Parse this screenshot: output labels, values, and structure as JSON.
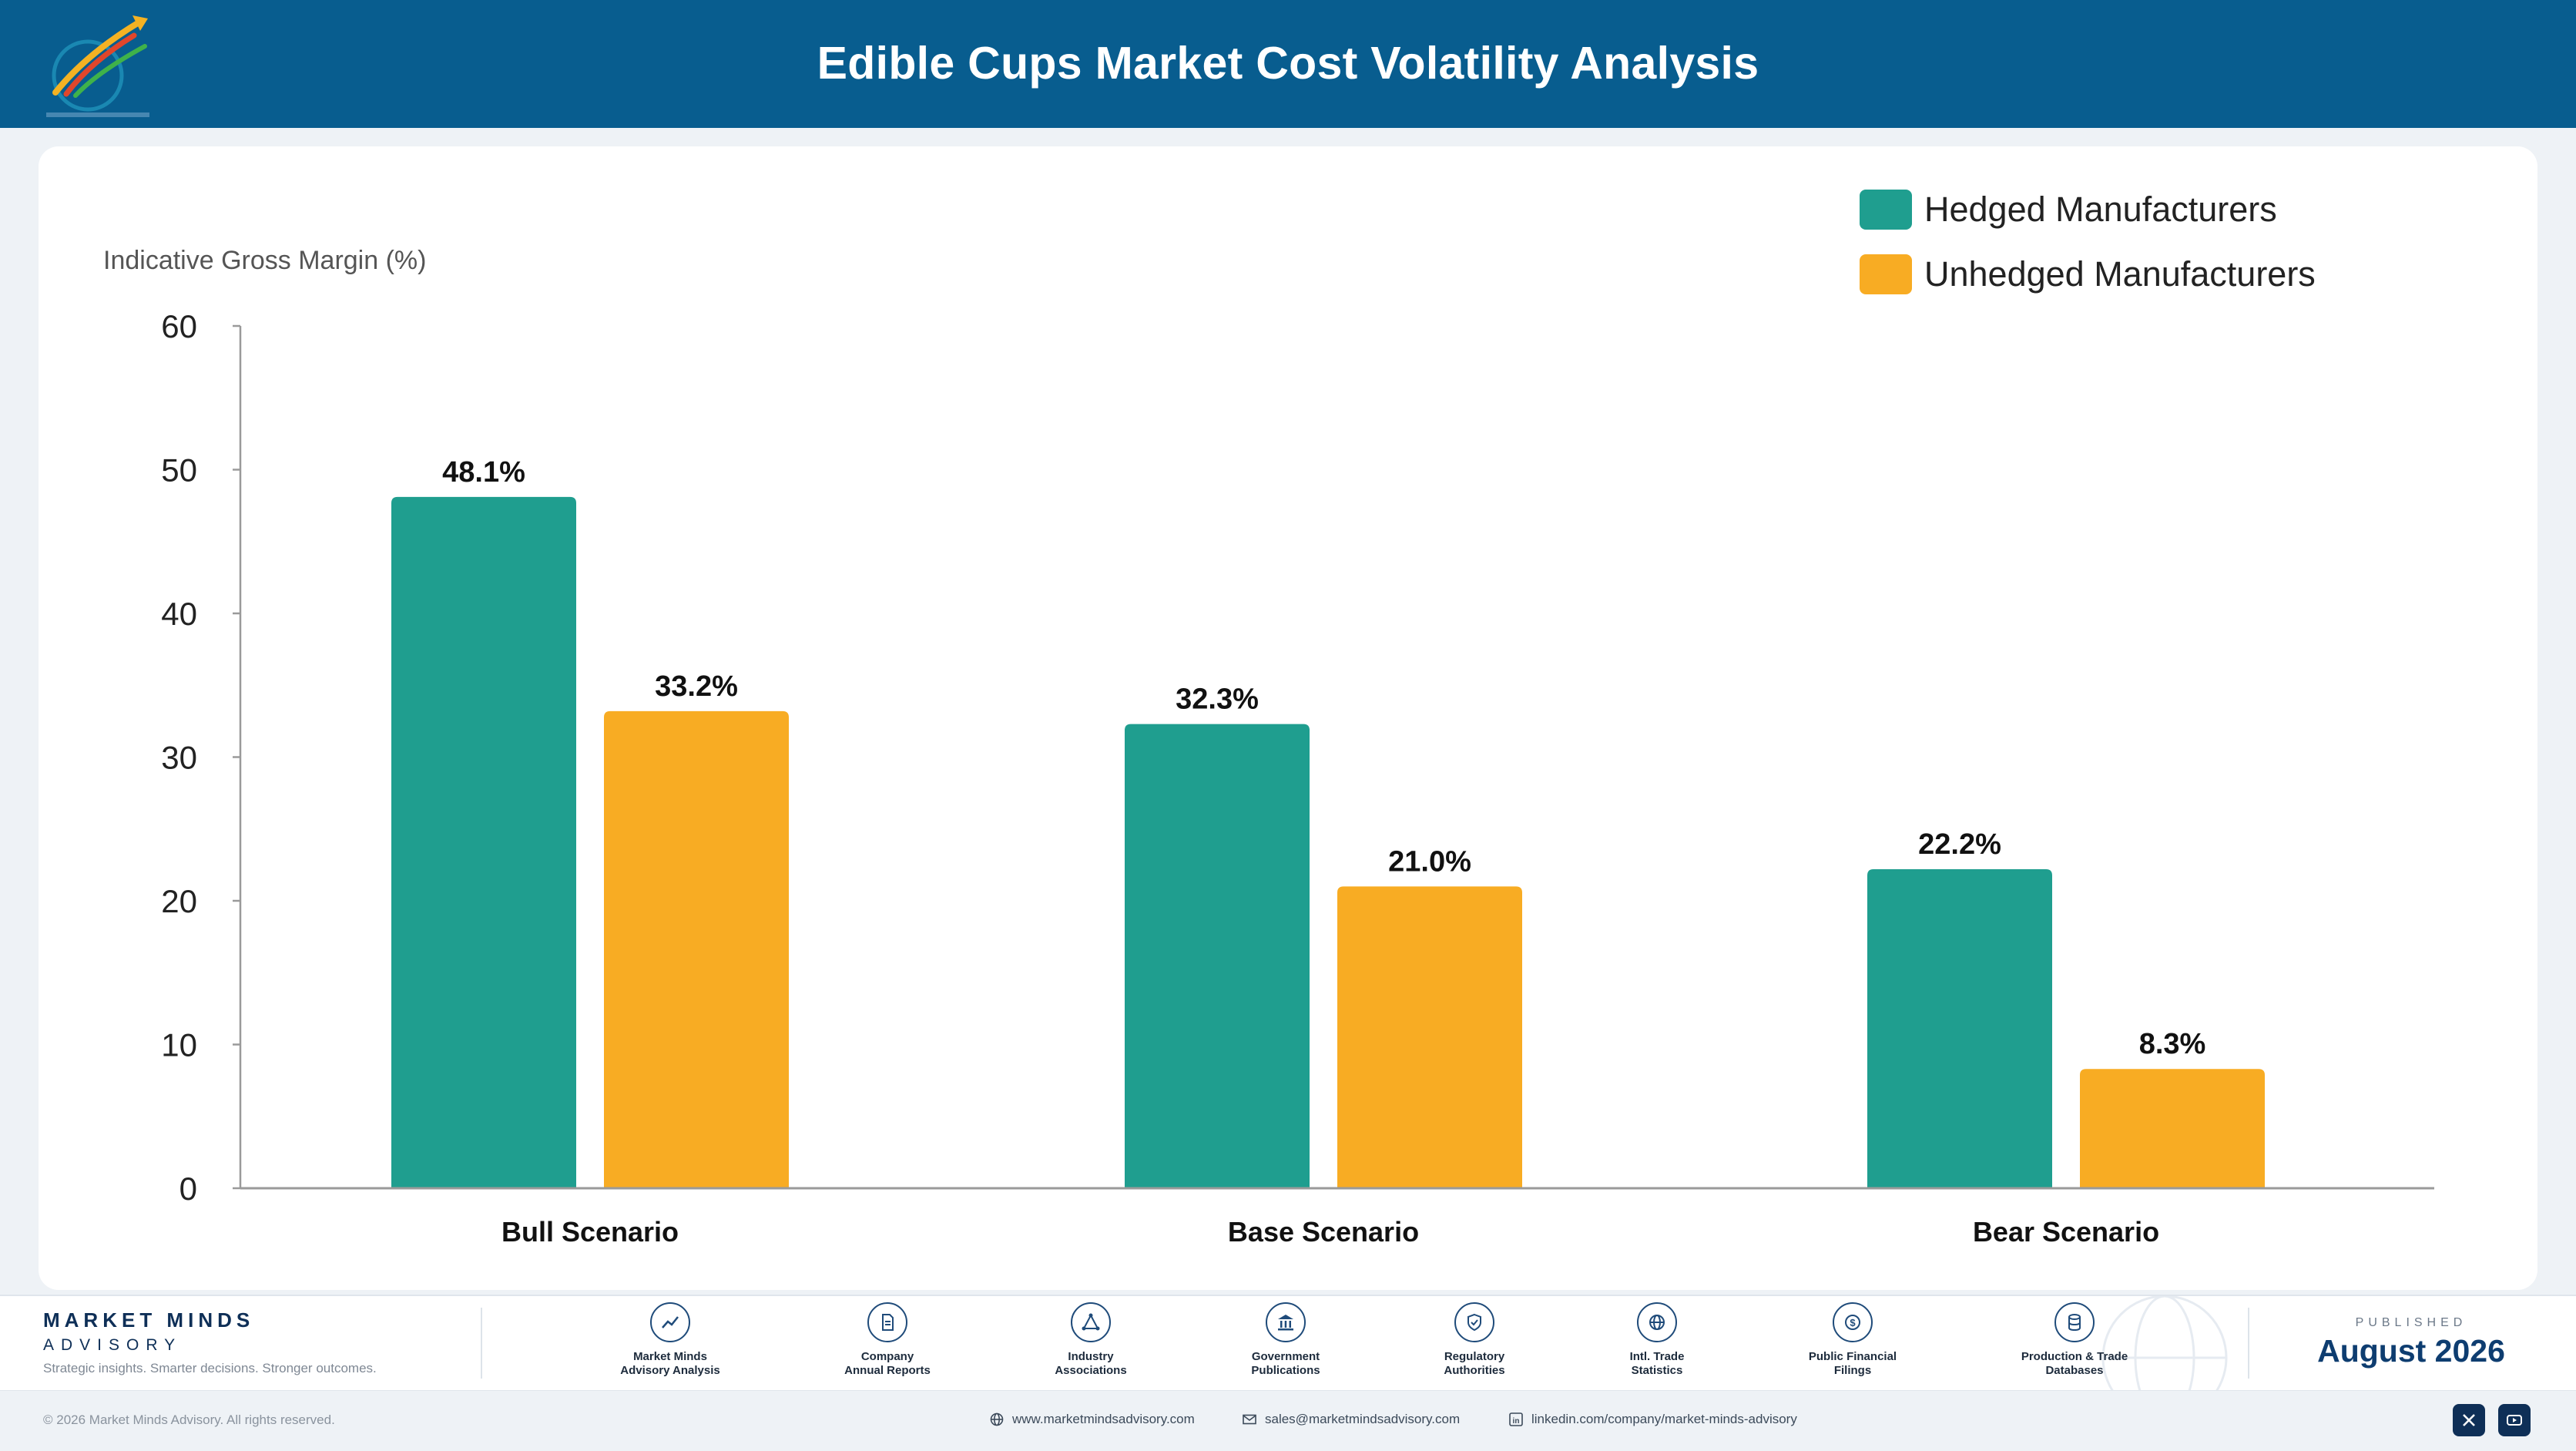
{
  "header": {
    "title": "Edible Cups Market Cost Volatility Analysis",
    "logo_text": "Market Minds Advisory"
  },
  "chart_data": {
    "type": "bar",
    "ylabel": "Indicative Gross Margin (%)",
    "xlabel": "",
    "categories": [
      "Bull Scenario",
      "Base Scenario",
      "Bear Scenario"
    ],
    "series": [
      {
        "name": "Hedged Manufacturers",
        "values": [
          48.1,
          32.3,
          22.2
        ],
        "labels": [
          "48.1%",
          "32.3%",
          "22.2%"
        ],
        "color": "#1f9e8f"
      },
      {
        "name": "Unhedged Manufacturers",
        "values": [
          33.2,
          21.0,
          8.3
        ],
        "labels": [
          "33.2%",
          "21.0%",
          "8.3%"
        ],
        "color": "#f8ac23"
      }
    ],
    "ylim": [
      0,
      60
    ],
    "yticks": [
      "0",
      "10",
      "20",
      "30",
      "40",
      "50",
      "60"
    ],
    "grid": false,
    "legend": "top-right"
  },
  "footer": {
    "brand_name": "MARKET MINDS",
    "brand_sub": "ADVISORY",
    "tagline": "Strategic insights. Smarter decisions. Stronger outcomes.",
    "sources": [
      {
        "label": "Market Minds\nAdvisory Analysis",
        "icon": "chart-line-icon"
      },
      {
        "label": "Company\nAnnual Reports",
        "icon": "document-icon"
      },
      {
        "label": "Industry\nAssociations",
        "icon": "network-icon"
      },
      {
        "label": "Government\nPublications",
        "icon": "government-building-icon"
      },
      {
        "label": "Regulatory\nAuthorities",
        "icon": "shield-check-icon"
      },
      {
        "label": "Intl. Trade\nStatistics",
        "icon": "globe-icon"
      },
      {
        "label": "Public Financial\nFilings",
        "icon": "dollar-coin-icon"
      },
      {
        "label": "Production & Trade\nDatabases",
        "icon": "database-icon"
      }
    ],
    "published_label": "PUBLISHED",
    "published_date": "August 2026",
    "copyright": "© 2026 Market Minds Advisory. All rights reserved.",
    "website": "www.marketmindsadvisory.com",
    "email": "sales@marketmindsadvisory.com",
    "linkedin": "linkedin.com/company/market-minds-advisory"
  }
}
